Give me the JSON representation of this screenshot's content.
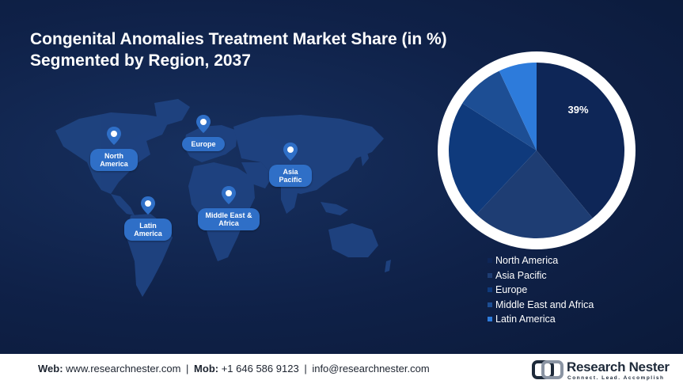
{
  "title_line1": "Congenital Anomalies Treatment Market Share (in %)",
  "title_line2": "Segmented by Region, 2037",
  "map_pins": [
    {
      "label": "North America"
    },
    {
      "label": "Europe"
    },
    {
      "label": "Asia Pacific"
    },
    {
      "label": "Middle East & Africa"
    },
    {
      "label": "Latin America"
    }
  ],
  "chart_data": {
    "type": "pie",
    "title": "Congenital Anomalies Treatment Market Share (in %) Segmented by Region, 2037",
    "slices": [
      {
        "name": "North America",
        "value": 39,
        "label": "39%",
        "color": "#0e2657"
      },
      {
        "name": "Asia Pacific",
        "value": 23,
        "label": "",
        "color": "#1e3d73"
      },
      {
        "name": "Europe",
        "value": 22,
        "label": "",
        "color": "#0f3a7c"
      },
      {
        "name": "Middle East and Africa",
        "value": 9,
        "label": "",
        "color": "#1d4e94"
      },
      {
        "name": "Latin America",
        "value": 7,
        "label": "",
        "color": "#2d7bdb"
      }
    ],
    "start": "top",
    "direction": "clockwise",
    "legend_position": "bottom-right"
  },
  "footer": {
    "web_label": "Web:",
    "web_value": "www.researchnester.com",
    "mob_label": "Mob:",
    "mob_value": "+1 646 586 9123",
    "email": "info@researchnester.com",
    "separator": "|"
  },
  "logo": {
    "name": "Research Nester",
    "tagline": "Connect. Lead. Accomplish"
  }
}
